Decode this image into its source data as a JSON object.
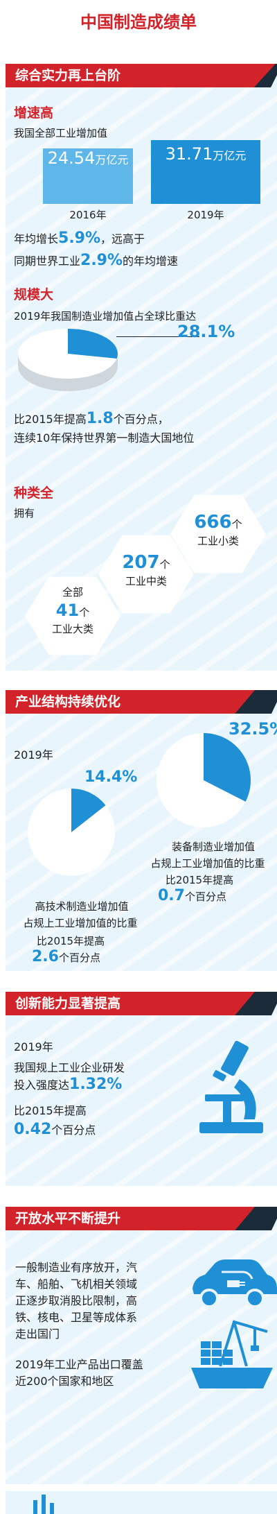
{
  "page_title": "中国制造成绩单",
  "sec1": {
    "banner": "综合实力再上台阶",
    "growth": {
      "heading": "增速高",
      "intro": "我国全部工业增加值",
      "bar_2016_value": "24.54",
      "bar_2019_value": "31.71",
      "unit": "万亿元",
      "year_2016": "2016年",
      "year_2019": "2019年",
      "line1_prefix": "年均增长",
      "line1_value": "5.9%",
      "line1_suffix": "，远高于",
      "line2_prefix": "同期世界工业",
      "line2_value": "2.9%",
      "line2_suffix": "的年均增速"
    },
    "scale": {
      "heading": "规模大",
      "intro": "2019年我国制造业增加值占全球比重达",
      "share": "28.1%",
      "share_fraction": 0.281,
      "line1_prefix": "比2015年提高",
      "line1_value": "1.8",
      "line1_suffix": "个百分点，",
      "line2": "连续10年保持世界第一制造大国地位"
    },
    "variety": {
      "heading": "种类全",
      "intro": "拥有",
      "small_num": "666",
      "small_unit": "个",
      "small_label": "工业小类",
      "mid_num": "207",
      "mid_unit": "个",
      "mid_label": "工业中类",
      "large_prefix": "全部",
      "large_num": "41",
      "large_unit": "个",
      "large_label": "工业大类"
    }
  },
  "sec2": {
    "banner": "产业结构持续优化",
    "year": "2019年",
    "equip_share": "32.5%",
    "equip_fraction": 0.325,
    "equip_line1": "装备制造业增加值",
    "equip_line2": "占规上工业增加值的比重",
    "equip_line3": "比2015年提高",
    "equip_num": "0.7",
    "equip_unit": "个百分点",
    "hitech_share": "14.4%",
    "hitech_fraction": 0.144,
    "hitech_line1": "高技术制造业增加值",
    "hitech_line2": "占规上工业增加值的比重",
    "hitech_line3": "比2015年提高",
    "hitech_num": "2.6",
    "hitech_unit": "个百分点"
  },
  "sec3": {
    "banner": "创新能力显著提高",
    "year": "2019年",
    "line1": "我国规上工业企业研发",
    "line2_prefix": "投入强度达",
    "line2_value": "1.32%",
    "line3": "比2015年提高",
    "line4_value": "0.42",
    "line4_suffix": "个百分点"
  },
  "sec4": {
    "banner": "开放水平不断提升",
    "p1_l1": "一般制造业有序放开，汽",
    "p1_l2": "车、船舶、飞机相关领域",
    "p1_l3": "正逐步取消股比限制，高",
    "p1_l4": "铁、核电、卫星等成体系",
    "p1_l5": "走出国门",
    "p2_l1": "2019年工业产品出口覆盖",
    "p2_l2": "近200个国家和地区"
  },
  "colors": {
    "red": "#d2232a",
    "blue": "#1f8fd6",
    "bg": "#e8f5fc",
    "dark": "#1c2b3a"
  },
  "icons": [
    "pie-chart-icon",
    "microscope-icon",
    "car-charging-icon",
    "ship-icon",
    "crane-icon"
  ]
}
